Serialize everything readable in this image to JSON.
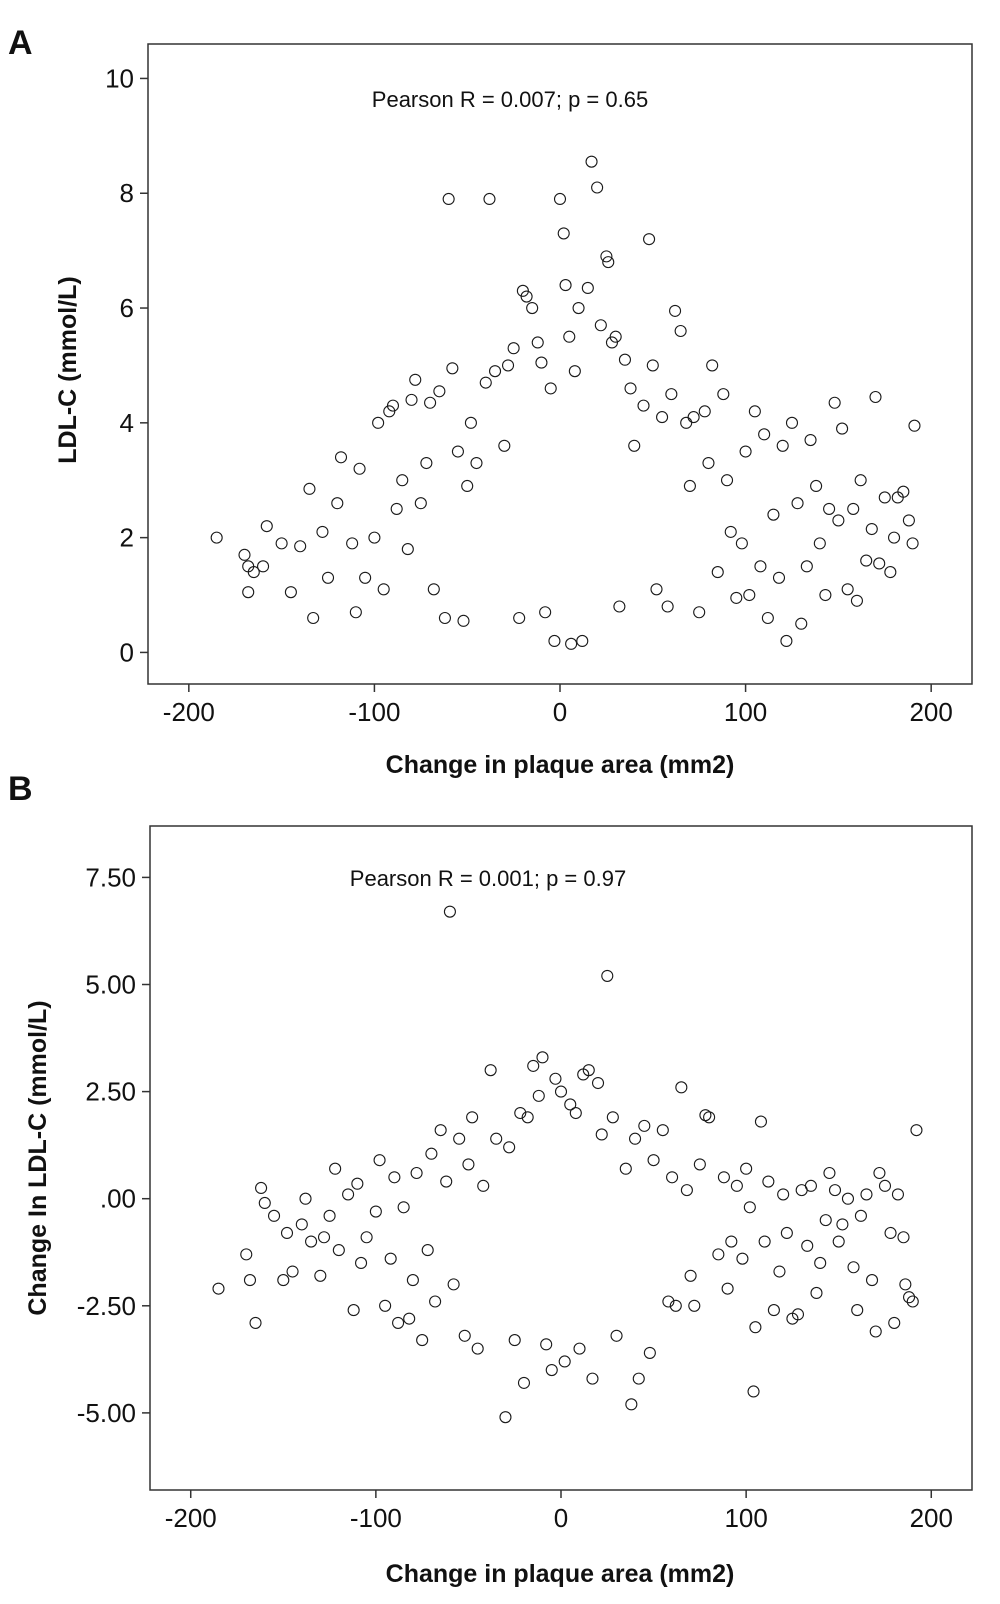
{
  "chart_data": [
    {
      "panel": "A",
      "type": "scatter",
      "xlabel": "Change in plaque area (mm2)",
      "ylabel": "LDL-C (mmol/L)",
      "annotation": "Pearson R = 0.007; p = 0.65",
      "xlim": [
        -222,
        222
      ],
      "ylim": [
        -0.55,
        10.6
      ],
      "xticks": [
        -200,
        -100,
        0,
        100,
        200
      ],
      "xtick_labels": [
        "-200",
        "-100",
        "0",
        "100",
        "200"
      ],
      "yticks": [
        0,
        2,
        4,
        6,
        8,
        10
      ],
      "ytick_labels": [
        "0",
        "2",
        "4",
        "6",
        "8",
        "10"
      ],
      "grid": false,
      "points": [
        [
          -185,
          2.0
        ],
        [
          -170,
          1.7
        ],
        [
          -168,
          1.5
        ],
        [
          -165,
          1.4
        ],
        [
          -168,
          1.05
        ],
        [
          -160,
          1.5
        ],
        [
          -158,
          2.2
        ],
        [
          -150,
          1.9
        ],
        [
          -145,
          1.05
        ],
        [
          -140,
          1.85
        ],
        [
          -135,
          2.85
        ],
        [
          -133,
          0.6
        ],
        [
          -128,
          2.1
        ],
        [
          -125,
          1.3
        ],
        [
          -120,
          2.6
        ],
        [
          -118,
          3.4
        ],
        [
          -112,
          1.9
        ],
        [
          -110,
          0.7
        ],
        [
          -108,
          3.2
        ],
        [
          -105,
          1.3
        ],
        [
          -100,
          2.0
        ],
        [
          -98,
          4.0
        ],
        [
          -95,
          1.1
        ],
        [
          -92,
          4.2
        ],
        [
          -90,
          4.3
        ],
        [
          -88,
          2.5
        ],
        [
          -85,
          3.0
        ],
        [
          -82,
          1.8
        ],
        [
          -80,
          4.4
        ],
        [
          -78,
          4.75
        ],
        [
          -75,
          2.6
        ],
        [
          -72,
          3.3
        ],
        [
          -70,
          4.35
        ],
        [
          -68,
          1.1
        ],
        [
          -65,
          4.55
        ],
        [
          -62,
          0.6
        ],
        [
          -60,
          7.9
        ],
        [
          -58,
          4.95
        ],
        [
          -55,
          3.5
        ],
        [
          -52,
          0.55
        ],
        [
          -50,
          2.9
        ],
        [
          -48,
          4.0
        ],
        [
          -45,
          3.3
        ],
        [
          -40,
          4.7
        ],
        [
          -38,
          7.9
        ],
        [
          -35,
          4.9
        ],
        [
          -30,
          3.6
        ],
        [
          -28,
          5.0
        ],
        [
          -25,
          5.3
        ],
        [
          -22,
          0.6
        ],
        [
          -20,
          6.3
        ],
        [
          -18,
          6.2
        ],
        [
          -15,
          6.0
        ],
        [
          -12,
          5.4
        ],
        [
          -10,
          5.05
        ],
        [
          -8,
          0.7
        ],
        [
          -5,
          4.6
        ],
        [
          -3,
          0.2
        ],
        [
          0,
          7.9
        ],
        [
          2,
          7.3
        ],
        [
          3,
          6.4
        ],
        [
          5,
          5.5
        ],
        [
          6,
          0.15
        ],
        [
          8,
          4.9
        ],
        [
          10,
          6.0
        ],
        [
          12,
          0.2
        ],
        [
          15,
          6.35
        ],
        [
          17,
          8.55
        ],
        [
          20,
          8.1
        ],
        [
          22,
          5.7
        ],
        [
          25,
          6.9
        ],
        [
          26,
          6.8
        ],
        [
          28,
          5.4
        ],
        [
          30,
          5.5
        ],
        [
          32,
          0.8
        ],
        [
          35,
          5.1
        ],
        [
          38,
          4.6
        ],
        [
          40,
          3.6
        ],
        [
          45,
          4.3
        ],
        [
          48,
          7.2
        ],
        [
          50,
          5.0
        ],
        [
          52,
          1.1
        ],
        [
          55,
          4.1
        ],
        [
          58,
          0.8
        ],
        [
          60,
          4.5
        ],
        [
          62,
          5.95
        ],
        [
          65,
          5.6
        ],
        [
          68,
          4.0
        ],
        [
          70,
          2.9
        ],
        [
          72,
          4.1
        ],
        [
          75,
          0.7
        ],
        [
          78,
          4.2
        ],
        [
          80,
          3.3
        ],
        [
          82,
          5.0
        ],
        [
          85,
          1.4
        ],
        [
          88,
          4.5
        ],
        [
          90,
          3.0
        ],
        [
          92,
          2.1
        ],
        [
          95,
          0.95
        ],
        [
          98,
          1.9
        ],
        [
          100,
          3.5
        ],
        [
          102,
          1.0
        ],
        [
          105,
          4.2
        ],
        [
          108,
          1.5
        ],
        [
          110,
          3.8
        ],
        [
          112,
          0.6
        ],
        [
          115,
          2.4
        ],
        [
          118,
          1.3
        ],
        [
          120,
          3.6
        ],
        [
          122,
          0.2
        ],
        [
          125,
          4.0
        ],
        [
          128,
          2.6
        ],
        [
          130,
          0.5
        ],
        [
          133,
          1.5
        ],
        [
          135,
          3.7
        ],
        [
          138,
          2.9
        ],
        [
          140,
          1.9
        ],
        [
          143,
          1.0
        ],
        [
          145,
          2.5
        ],
        [
          148,
          4.35
        ],
        [
          150,
          2.3
        ],
        [
          152,
          3.9
        ],
        [
          155,
          1.1
        ],
        [
          158,
          2.5
        ],
        [
          160,
          0.9
        ],
        [
          162,
          3.0
        ],
        [
          165,
          1.6
        ],
        [
          168,
          2.15
        ],
        [
          170,
          4.45
        ],
        [
          172,
          1.55
        ],
        [
          175,
          2.7
        ],
        [
          178,
          1.4
        ],
        [
          180,
          2.0
        ],
        [
          182,
          2.7
        ],
        [
          185,
          2.8
        ],
        [
          188,
          2.3
        ],
        [
          190,
          1.9
        ],
        [
          191,
          3.95
        ]
      ]
    },
    {
      "panel": "B",
      "type": "scatter",
      "xlabel": "Change in plaque area (mm2)",
      "ylabel": "Change In LDL-C (mmol/L)",
      "annotation": "Pearson R = 0.001; p = 0.97",
      "xlim": [
        -222,
        222
      ],
      "ylim": [
        -6.8,
        8.7
      ],
      "xticks": [
        -200,
        -100,
        0,
        100,
        200
      ],
      "xtick_labels": [
        "-200",
        "-100",
        "0",
        "100",
        "200"
      ],
      "yticks": [
        7.5,
        5.0,
        2.5,
        0.0,
        -2.5,
        -5.0
      ],
      "ytick_labels": [
        "7.50",
        "5.00",
        "2.50",
        ".00",
        "-2.50",
        "-5.00"
      ],
      "grid": false,
      "points": [
        [
          -185,
          -2.1
        ],
        [
          -170,
          -1.3
        ],
        [
          -168,
          -1.9
        ],
        [
          -165,
          -2.9
        ],
        [
          -162,
          0.25
        ],
        [
          -160,
          -0.1
        ],
        [
          -155,
          -0.4
        ],
        [
          -150,
          -1.9
        ],
        [
          -148,
          -0.8
        ],
        [
          -145,
          -1.7
        ],
        [
          -140,
          -0.6
        ],
        [
          -138,
          0.0
        ],
        [
          -135,
          -1.0
        ],
        [
          -130,
          -1.8
        ],
        [
          -128,
          -0.9
        ],
        [
          -125,
          -0.4
        ],
        [
          -122,
          0.7
        ],
        [
          -120,
          -1.2
        ],
        [
          -115,
          0.1
        ],
        [
          -112,
          -2.6
        ],
        [
          -110,
          0.35
        ],
        [
          -108,
          -1.5
        ],
        [
          -105,
          -0.9
        ],
        [
          -100,
          -0.3
        ],
        [
          -98,
          0.9
        ],
        [
          -95,
          -2.5
        ],
        [
          -92,
          -1.4
        ],
        [
          -90,
          0.5
        ],
        [
          -88,
          -2.9
        ],
        [
          -85,
          -0.2
        ],
        [
          -82,
          -2.8
        ],
        [
          -80,
          -1.9
        ],
        [
          -78,
          0.6
        ],
        [
          -75,
          -3.3
        ],
        [
          -72,
          -1.2
        ],
        [
          -70,
          1.05
        ],
        [
          -68,
          -2.4
        ],
        [
          -65,
          1.6
        ],
        [
          -62,
          0.4
        ],
        [
          -60,
          6.7
        ],
        [
          -58,
          -2.0
        ],
        [
          -55,
          1.4
        ],
        [
          -52,
          -3.2
        ],
        [
          -50,
          0.8
        ],
        [
          -48,
          1.9
        ],
        [
          -45,
          -3.5
        ],
        [
          -42,
          0.3
        ],
        [
          -38,
          3.0
        ],
        [
          -35,
          1.4
        ],
        [
          -30,
          -5.1
        ],
        [
          -28,
          1.2
        ],
        [
          -25,
          -3.3
        ],
        [
          -22,
          2.0
        ],
        [
          -20,
          -4.3
        ],
        [
          -18,
          1.9
        ],
        [
          -15,
          3.1
        ],
        [
          -12,
          2.4
        ],
        [
          -10,
          3.3
        ],
        [
          -8,
          -3.4
        ],
        [
          -5,
          -4.0
        ],
        [
          -3,
          2.8
        ],
        [
          0,
          2.5
        ],
        [
          2,
          -3.8
        ],
        [
          5,
          2.2
        ],
        [
          8,
          2.0
        ],
        [
          10,
          -3.5
        ],
        [
          12,
          2.9
        ],
        [
          15,
          3.0
        ],
        [
          17,
          -4.2
        ],
        [
          20,
          2.7
        ],
        [
          22,
          1.5
        ],
        [
          25,
          5.2
        ],
        [
          28,
          1.9
        ],
        [
          30,
          -3.2
        ],
        [
          35,
          0.7
        ],
        [
          38,
          -4.8
        ],
        [
          40,
          1.4
        ],
        [
          42,
          -4.2
        ],
        [
          45,
          1.7
        ],
        [
          48,
          -3.6
        ],
        [
          50,
          0.9
        ],
        [
          55,
          1.6
        ],
        [
          58,
          -2.4
        ],
        [
          60,
          0.5
        ],
        [
          62,
          -2.5
        ],
        [
          65,
          2.6
        ],
        [
          68,
          0.2
        ],
        [
          70,
          -1.8
        ],
        [
          72,
          -2.5
        ],
        [
          75,
          0.8
        ],
        [
          78,
          1.95
        ],
        [
          80,
          1.9
        ],
        [
          85,
          -1.3
        ],
        [
          88,
          0.5
        ],
        [
          90,
          -2.1
        ],
        [
          92,
          -1.0
        ],
        [
          95,
          0.3
        ],
        [
          98,
          -1.4
        ],
        [
          100,
          0.7
        ],
        [
          102,
          -0.2
        ],
        [
          104,
          -4.5
        ],
        [
          105,
          -3.0
        ],
        [
          108,
          1.8
        ],
        [
          110,
          -1.0
        ],
        [
          112,
          0.4
        ],
        [
          115,
          -2.6
        ],
        [
          118,
          -1.7
        ],
        [
          120,
          0.1
        ],
        [
          122,
          -0.8
        ],
        [
          125,
          -2.8
        ],
        [
          128,
          -2.7
        ],
        [
          130,
          0.2
        ],
        [
          133,
          -1.1
        ],
        [
          135,
          0.3
        ],
        [
          138,
          -2.2
        ],
        [
          140,
          -1.5
        ],
        [
          143,
          -0.5
        ],
        [
          145,
          0.6
        ],
        [
          148,
          0.2
        ],
        [
          150,
          -1.0
        ],
        [
          152,
          -0.6
        ],
        [
          155,
          0.0
        ],
        [
          158,
          -1.6
        ],
        [
          160,
          -2.6
        ],
        [
          162,
          -0.4
        ],
        [
          165,
          0.1
        ],
        [
          168,
          -1.9
        ],
        [
          170,
          -3.1
        ],
        [
          172,
          0.6
        ],
        [
          175,
          0.3
        ],
        [
          178,
          -0.8
        ],
        [
          180,
          -2.9
        ],
        [
          182,
          0.1
        ],
        [
          185,
          -0.9
        ],
        [
          186,
          -2.0
        ],
        [
          188,
          -2.3
        ],
        [
          190,
          -2.4
        ],
        [
          192,
          1.6
        ]
      ]
    }
  ]
}
